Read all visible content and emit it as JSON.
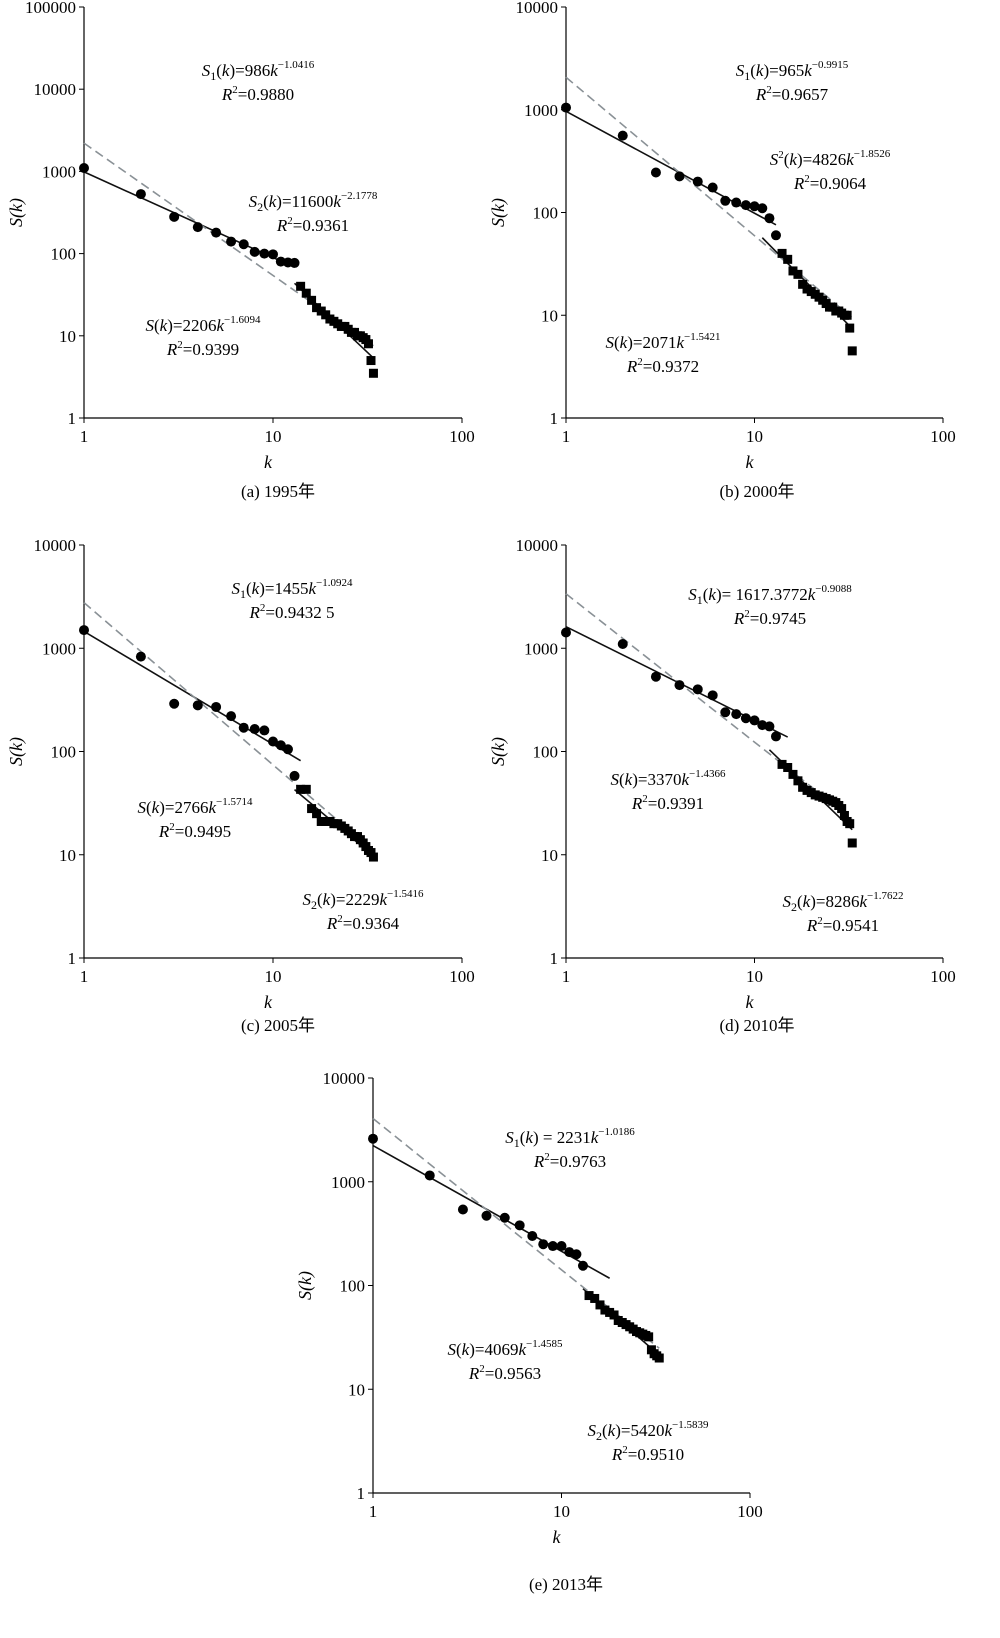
{
  "figure": {
    "charts": [
      {
        "caption": "(a) 1995年",
        "xlabel": "k",
        "ylabel": "S(k)",
        "y_ticks": [
          "1",
          "10",
          "100",
          "1000",
          "10000",
          "100000"
        ],
        "x_ticks": [
          "1",
          "10",
          "100"
        ],
        "eq1": {
          "lhs": "S",
          "lhs_sub": "1",
          "coef": "986",
          "exp": "−1.0416",
          "r2": "0.9880"
        },
        "eq2": {
          "lhs": "S",
          "lhs_sub": "2",
          "coef": "11600",
          "exp": "−2.1778",
          "r2": "0.9361"
        },
        "eq_all": {
          "lhs": "S",
          "lhs_sub": "",
          "coef": "2206",
          "exp": "−1.6094",
          "r2": "0.9399"
        }
      },
      {
        "caption": "(b) 2000年",
        "xlabel": "k",
        "ylabel": "S(k)",
        "y_ticks": [
          "1",
          "10",
          "100",
          "1000",
          "10000"
        ],
        "x_ticks": [
          "1",
          "10",
          "100"
        ],
        "eq1": {
          "lhs": "S",
          "lhs_sub": "1",
          "coef": "965",
          "exp": "−0.9915",
          "r2": "0.9657"
        },
        "eq2": {
          "lhs": "S",
          "lhs_sub": "",
          "lhs_sup": "2",
          "coef": "4826",
          "exp": "−1.8526",
          "r2": "0.9064"
        },
        "eq_all": {
          "lhs": "S",
          "lhs_sub": "",
          "coef": "2071",
          "exp": "−1.5421",
          "r2": "0.9372"
        }
      },
      {
        "caption": "(c) 2005年",
        "xlabel": "k",
        "ylabel": "S(k)",
        "y_ticks": [
          "1",
          "10",
          "100",
          "1000",
          "10000"
        ],
        "x_ticks": [
          "1",
          "10",
          "100"
        ],
        "eq1": {
          "lhs": "S",
          "lhs_sub": "1",
          "coef": "1455",
          "exp": "−1.0924",
          "r2": "0.9432 5"
        },
        "eq2": {
          "lhs": "S",
          "lhs_sub": "2",
          "coef": "2229",
          "exp": "−1.5416",
          "r2": "0.9364"
        },
        "eq_all": {
          "lhs": "S",
          "lhs_sub": "",
          "coef": "2766",
          "exp": "−1.5714",
          "r2": "0.9495"
        }
      },
      {
        "caption": "(d) 2010年",
        "xlabel": "k",
        "ylabel": "S(k)",
        "y_ticks": [
          "1",
          "10",
          "100",
          "1000",
          "10000"
        ],
        "x_ticks": [
          "1",
          "10",
          "100"
        ],
        "eq1": {
          "lhs": "S",
          "lhs_sub": "1",
          "coef": " 1617.3772",
          "exp": "−0.9088",
          "r2": "0.9745"
        },
        "eq2": {
          "lhs": "S",
          "lhs_sub": "2",
          "coef": "8286",
          "exp": "−1.7622",
          "r2": "0.9541"
        },
        "eq_all": {
          "lhs": "S",
          "lhs_sub": "",
          "coef": "3370",
          "exp": "−1.4366",
          "r2": "0.9391"
        }
      },
      {
        "caption": "(e) 2013年",
        "xlabel": "k",
        "ylabel": "S(k)",
        "y_ticks": [
          "1",
          "10",
          "100",
          "1000",
          "10000"
        ],
        "x_ticks": [
          "1",
          "10",
          "100"
        ],
        "eq1": {
          "lhs": "S",
          "lhs_sub": "1",
          "coef": " 2231",
          "exp": "−1.0186",
          "r2": "0.9763",
          "spaced": true
        },
        "eq2": {
          "lhs": "S",
          "lhs_sub": "2",
          "coef": "5420",
          "exp": "−1.5839",
          "r2": "0.9510"
        },
        "eq_all": {
          "lhs": "S",
          "lhs_sub": "",
          "coef": "4069",
          "exp": "−1.4585",
          "r2": "0.9563"
        }
      }
    ]
  },
  "chart_data": [
    {
      "type": "scatter",
      "title": "(a) 1995年",
      "xlabel": "k",
      "ylabel": "S(k)",
      "x_scale": "log",
      "y_scale": "log",
      "xlim": [
        1,
        100
      ],
      "ylim": [
        1,
        100000
      ],
      "grid": false,
      "series": [
        {
          "name": "S1(k)",
          "marker": "circle",
          "x": [
            1,
            2,
            3,
            4,
            5,
            6,
            7,
            8,
            9,
            10,
            11,
            12,
            13
          ],
          "y": [
            1100,
            530,
            280,
            210,
            180,
            140,
            130,
            105,
            100,
            98,
            80,
            78,
            77
          ]
        },
        {
          "name": "S2(k)",
          "marker": "square",
          "x": [
            14,
            15,
            16,
            17,
            18,
            19,
            20,
            21,
            22,
            23,
            24,
            25,
            26,
            27,
            28,
            29,
            30,
            31,
            32,
            33,
            34
          ],
          "y": [
            40,
            33,
            27,
            22,
            20,
            18,
            16,
            15,
            14,
            13,
            13,
            12,
            11,
            11,
            10,
            10,
            9.5,
            9,
            8,
            5,
            3.5
          ]
        }
      ],
      "fits": [
        {
          "name": "S1(k)",
          "a": 986,
          "b": -1.0416,
          "x_range": [
            1,
            13
          ],
          "style": "solid"
        },
        {
          "name": "S2(k)",
          "a": 11600,
          "b": -2.1778,
          "x_range": [
            13,
            34
          ],
          "style": "solid"
        },
        {
          "name": "S(k)",
          "a": 2206,
          "b": -1.6094,
          "x_range": [
            1,
            34
          ],
          "style": "dashed"
        }
      ]
    },
    {
      "type": "scatter",
      "title": "(b) 2000年",
      "xlabel": "k",
      "ylabel": "S(k)",
      "x_scale": "log",
      "y_scale": "log",
      "xlim": [
        1,
        100
      ],
      "ylim": [
        1,
        10000
      ],
      "grid": false,
      "series": [
        {
          "name": "S1(k)",
          "marker": "circle",
          "x": [
            1,
            2,
            3,
            4,
            5,
            6,
            7,
            8,
            9,
            10,
            11,
            12,
            13
          ],
          "y": [
            1050,
            560,
            245,
            225,
            200,
            175,
            130,
            125,
            118,
            115,
            110,
            88,
            60
          ]
        },
        {
          "name": "S2(k)",
          "marker": "square",
          "x": [
            14,
            15,
            16,
            17,
            18,
            19,
            20,
            21,
            22,
            23,
            24,
            25,
            26,
            27,
            28,
            29,
            30,
            31,
            32,
            33
          ],
          "y": [
            40,
            35,
            27,
            25,
            20,
            18,
            17,
            16,
            15,
            14,
            13,
            12,
            12,
            11,
            11,
            10.5,
            10,
            10,
            7.5,
            4.5
          ]
        }
      ],
      "fits": [
        {
          "name": "S1(k)",
          "a": 965,
          "b": -0.9915,
          "x_range": [
            1,
            13
          ],
          "style": "solid"
        },
        {
          "name": "S2(k)",
          "a": 4826,
          "b": -1.8526,
          "x_range": [
            11,
            33
          ],
          "style": "solid"
        },
        {
          "name": "S(k)",
          "a": 2071,
          "b": -1.5421,
          "x_range": [
            1,
            33
          ],
          "style": "dashed"
        }
      ]
    },
    {
      "type": "scatter",
      "title": "(c) 2005年",
      "xlabel": "k",
      "ylabel": "S(k)",
      "x_scale": "log",
      "y_scale": "log",
      "xlim": [
        1,
        100
      ],
      "ylim": [
        1,
        10000
      ],
      "grid": false,
      "series": [
        {
          "name": "S1(k)",
          "marker": "circle",
          "x": [
            1,
            2,
            3,
            4,
            5,
            6,
            7,
            8,
            9,
            10,
            11,
            12,
            13
          ],
          "y": [
            1500,
            830,
            290,
            280,
            270,
            220,
            170,
            165,
            160,
            125,
            115,
            105,
            58
          ]
        },
        {
          "name": "S2(k)",
          "marker": "square",
          "x": [
            14,
            15,
            16,
            17,
            18,
            19,
            20,
            21,
            22,
            23,
            24,
            25,
            26,
            27,
            28,
            29,
            30,
            31,
            32,
            33,
            34
          ],
          "y": [
            43,
            43,
            28,
            25,
            21,
            21,
            21,
            20,
            20,
            19,
            18,
            17,
            16,
            15,
            15,
            14,
            13,
            12,
            11,
            10.5,
            9.5
          ]
        }
      ],
      "fits": [
        {
          "name": "S1(k)",
          "a": 1455,
          "b": -1.0924,
          "x_range": [
            1,
            14
          ],
          "style": "solid"
        },
        {
          "name": "S2(k)",
          "a": 2229,
          "b": -1.5416,
          "x_range": [
            13,
            34
          ],
          "style": "solid"
        },
        {
          "name": "S(k)",
          "a": 2766,
          "b": -1.5714,
          "x_range": [
            1,
            34
          ],
          "style": "dashed"
        }
      ]
    },
    {
      "type": "scatter",
      "title": "(d) 2010年",
      "xlabel": "k",
      "ylabel": "S(k)",
      "x_scale": "log",
      "y_scale": "log",
      "xlim": [
        1,
        100
      ],
      "ylim": [
        1,
        10000
      ],
      "grid": false,
      "series": [
        {
          "name": "S1(k)",
          "marker": "circle",
          "x": [
            1,
            2,
            3,
            4,
            5,
            6,
            7,
            8,
            9,
            10,
            11,
            12,
            13
          ],
          "y": [
            1420,
            1100,
            530,
            440,
            400,
            350,
            240,
            230,
            210,
            200,
            180,
            175,
            140
          ]
        },
        {
          "name": "S2(k)",
          "marker": "square",
          "x": [
            14,
            15,
            16,
            17,
            18,
            19,
            20,
            21,
            22,
            23,
            24,
            25,
            26,
            27,
            28,
            29,
            30,
            31,
            32,
            33
          ],
          "y": [
            75,
            70,
            60,
            52,
            45,
            42,
            40,
            38,
            37,
            36,
            35,
            34,
            33,
            32,
            30,
            28,
            24,
            21,
            20,
            13
          ]
        }
      ],
      "fits": [
        {
          "name": "S1(k)",
          "a": 1617.3772,
          "b": -0.9088,
          "x_range": [
            1,
            15
          ],
          "style": "solid"
        },
        {
          "name": "S2(k)",
          "a": 8286,
          "b": -1.7622,
          "x_range": [
            12,
            33
          ],
          "style": "solid"
        },
        {
          "name": "S(k)",
          "a": 3370,
          "b": -1.4366,
          "x_range": [
            1,
            33
          ],
          "style": "dashed"
        }
      ]
    },
    {
      "type": "scatter",
      "title": "(e) 2013年",
      "xlabel": "k",
      "ylabel": "S(k)",
      "x_scale": "log",
      "y_scale": "log",
      "xlim": [
        1,
        100
      ],
      "ylim": [
        1,
        10000
      ],
      "grid": false,
      "series": [
        {
          "name": "S1(k)",
          "marker": "circle",
          "x": [
            1,
            2,
            3,
            4,
            5,
            6,
            7,
            8,
            9,
            10,
            11,
            12,
            13
          ],
          "y": [
            2600,
            1150,
            540,
            470,
            450,
            380,
            300,
            250,
            240,
            240,
            210,
            200,
            155
          ]
        },
        {
          "name": "S2(k)",
          "marker": "square",
          "x": [
            14,
            15,
            16,
            17,
            18,
            19,
            20,
            21,
            22,
            23,
            24,
            25,
            26,
            27,
            28,
            29,
            30,
            31,
            32,
            33
          ],
          "y": [
            80,
            75,
            65,
            58,
            55,
            52,
            46,
            44,
            42,
            40,
            38,
            36,
            35,
            34,
            33,
            32,
            24,
            22,
            21,
            20
          ]
        }
      ],
      "fits": [
        {
          "name": "S1(k)",
          "a": 2231,
          "b": -1.0186,
          "x_range": [
            1,
            18
          ],
          "style": "solid"
        },
        {
          "name": "S2(k)",
          "a": 5420,
          "b": -1.5839,
          "x_range": [
            13,
            33
          ],
          "style": "solid"
        },
        {
          "name": "S(k)",
          "a": 4069,
          "b": -1.4585,
          "x_range": [
            1,
            33
          ],
          "style": "dashed"
        }
      ]
    }
  ]
}
